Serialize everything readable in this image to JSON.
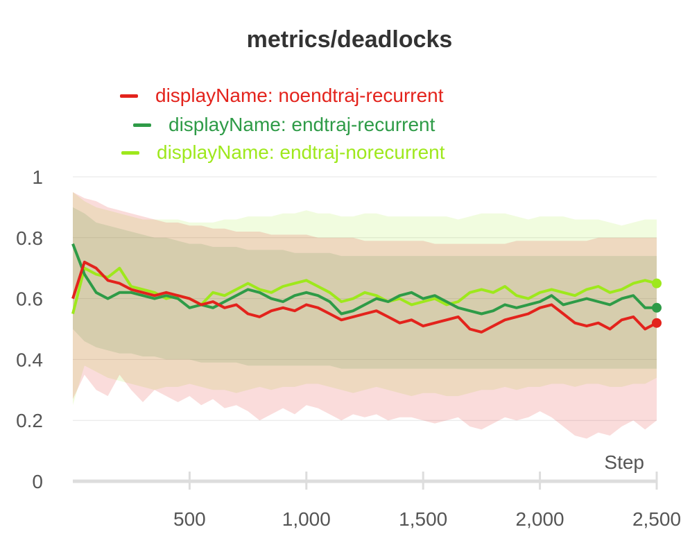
{
  "chart_data": {
    "type": "line",
    "title": "metrics/deadlocks",
    "xlabel": "Step",
    "ylabel": "",
    "xlim": [
      0,
      2500
    ],
    "ylim": [
      0,
      1
    ],
    "x_ticks": [
      500,
      1000,
      1500,
      2000,
      2500
    ],
    "x_tick_labels": [
      "500",
      "1,000",
      "1,500",
      "2,000",
      "2,500"
    ],
    "y_ticks": [
      0,
      0.2,
      0.4,
      0.6,
      0.8,
      1
    ],
    "y_tick_labels": [
      "0",
      "0.2",
      "0.4",
      "0.6",
      "0.8",
      "1"
    ],
    "grid": true,
    "legend_position": "top",
    "x": [
      0,
      50,
      100,
      150,
      200,
      250,
      300,
      350,
      400,
      450,
      500,
      550,
      600,
      650,
      700,
      750,
      800,
      850,
      900,
      950,
      1000,
      1050,
      1100,
      1150,
      1200,
      1250,
      1300,
      1350,
      1400,
      1450,
      1500,
      1550,
      1600,
      1650,
      1700,
      1750,
      1800,
      1850,
      1900,
      1950,
      2000,
      2050,
      2100,
      2150,
      2200,
      2250,
      2300,
      2350,
      2400,
      2450,
      2500
    ],
    "series": [
      {
        "name": "displayName: noendtraj-recurrent",
        "color": "#e3231c",
        "values": [
          0.6,
          0.72,
          0.7,
          0.66,
          0.65,
          0.63,
          0.62,
          0.61,
          0.62,
          0.61,
          0.6,
          0.58,
          0.59,
          0.57,
          0.58,
          0.55,
          0.54,
          0.56,
          0.57,
          0.56,
          0.58,
          0.57,
          0.55,
          0.53,
          0.54,
          0.55,
          0.56,
          0.54,
          0.52,
          0.53,
          0.51,
          0.52,
          0.53,
          0.54,
          0.5,
          0.49,
          0.51,
          0.53,
          0.54,
          0.55,
          0.57,
          0.58,
          0.55,
          0.52,
          0.51,
          0.52,
          0.5,
          0.53,
          0.54,
          0.5,
          0.52
        ],
        "band_upper": [
          0.95,
          0.93,
          0.92,
          0.9,
          0.89,
          0.88,
          0.87,
          0.86,
          0.85,
          0.85,
          0.84,
          0.84,
          0.83,
          0.83,
          0.82,
          0.82,
          0.82,
          0.81,
          0.81,
          0.81,
          0.81,
          0.8,
          0.8,
          0.8,
          0.8,
          0.79,
          0.79,
          0.79,
          0.79,
          0.79,
          0.79,
          0.78,
          0.78,
          0.78,
          0.78,
          0.78,
          0.78,
          0.78,
          0.79,
          0.79,
          0.79,
          0.79,
          0.79,
          0.79,
          0.79,
          0.8,
          0.8,
          0.8,
          0.8,
          0.8,
          0.8
        ],
        "band_lower": [
          0.27,
          0.35,
          0.3,
          0.28,
          0.35,
          0.3,
          0.26,
          0.3,
          0.28,
          0.26,
          0.28,
          0.25,
          0.27,
          0.24,
          0.25,
          0.23,
          0.2,
          0.22,
          0.24,
          0.22,
          0.25,
          0.24,
          0.22,
          0.2,
          0.22,
          0.21,
          0.22,
          0.2,
          0.21,
          0.21,
          0.2,
          0.19,
          0.2,
          0.21,
          0.18,
          0.17,
          0.19,
          0.21,
          0.2,
          0.21,
          0.23,
          0.21,
          0.18,
          0.15,
          0.14,
          0.16,
          0.15,
          0.18,
          0.2,
          0.17,
          0.2
        ]
      },
      {
        "name": "displayName: endtraj-recurrent",
        "color": "#2e9b47",
        "values": [
          0.78,
          0.68,
          0.62,
          0.6,
          0.62,
          0.62,
          0.61,
          0.6,
          0.61,
          0.6,
          0.57,
          0.58,
          0.57,
          0.59,
          0.61,
          0.63,
          0.62,
          0.6,
          0.59,
          0.61,
          0.62,
          0.61,
          0.59,
          0.55,
          0.56,
          0.58,
          0.6,
          0.59,
          0.61,
          0.62,
          0.6,
          0.61,
          0.59,
          0.57,
          0.56,
          0.55,
          0.56,
          0.58,
          0.57,
          0.58,
          0.59,
          0.61,
          0.58,
          0.59,
          0.6,
          0.59,
          0.58,
          0.6,
          0.61,
          0.57,
          0.57
        ],
        "band_upper": [
          0.9,
          0.88,
          0.85,
          0.84,
          0.83,
          0.82,
          0.81,
          0.8,
          0.8,
          0.79,
          0.78,
          0.78,
          0.77,
          0.77,
          0.77,
          0.76,
          0.76,
          0.76,
          0.76,
          0.75,
          0.75,
          0.75,
          0.75,
          0.74,
          0.74,
          0.74,
          0.74,
          0.74,
          0.74,
          0.74,
          0.74,
          0.74,
          0.74,
          0.74,
          0.74,
          0.74,
          0.74,
          0.74,
          0.74,
          0.74,
          0.74,
          0.74,
          0.74,
          0.74,
          0.74,
          0.74,
          0.74,
          0.74,
          0.74,
          0.74,
          0.74
        ],
        "band_lower": [
          0.5,
          0.46,
          0.44,
          0.43,
          0.42,
          0.42,
          0.41,
          0.41,
          0.4,
          0.4,
          0.4,
          0.39,
          0.39,
          0.39,
          0.39,
          0.38,
          0.38,
          0.38,
          0.38,
          0.38,
          0.38,
          0.38,
          0.38,
          0.37,
          0.37,
          0.37,
          0.37,
          0.37,
          0.37,
          0.37,
          0.37,
          0.37,
          0.37,
          0.37,
          0.37,
          0.37,
          0.37,
          0.37,
          0.37,
          0.37,
          0.37,
          0.37,
          0.37,
          0.37,
          0.37,
          0.37,
          0.37,
          0.37,
          0.37,
          0.37,
          0.37
        ]
      },
      {
        "name": "displayName: endtraj-norecurrent",
        "color": "#9ee81c",
        "values": [
          0.55,
          0.7,
          0.68,
          0.67,
          0.7,
          0.64,
          0.63,
          0.62,
          0.6,
          0.61,
          0.6,
          0.58,
          0.62,
          0.61,
          0.63,
          0.65,
          0.63,
          0.62,
          0.64,
          0.65,
          0.66,
          0.64,
          0.62,
          0.59,
          0.6,
          0.62,
          0.61,
          0.59,
          0.6,
          0.58,
          0.59,
          0.6,
          0.58,
          0.59,
          0.62,
          0.63,
          0.62,
          0.64,
          0.61,
          0.6,
          0.62,
          0.63,
          0.62,
          0.61,
          0.63,
          0.64,
          0.62,
          0.63,
          0.65,
          0.66,
          0.65
        ],
        "band_upper": [
          0.95,
          0.92,
          0.9,
          0.89,
          0.88,
          0.87,
          0.86,
          0.86,
          0.86,
          0.86,
          0.85,
          0.85,
          0.85,
          0.86,
          0.86,
          0.87,
          0.87,
          0.87,
          0.88,
          0.88,
          0.89,
          0.88,
          0.88,
          0.87,
          0.87,
          0.88,
          0.88,
          0.87,
          0.87,
          0.87,
          0.87,
          0.87,
          0.87,
          0.86,
          0.87,
          0.88,
          0.88,
          0.88,
          0.87,
          0.86,
          0.87,
          0.87,
          0.87,
          0.86,
          0.86,
          0.86,
          0.85,
          0.84,
          0.85,
          0.86,
          0.86
        ],
        "band_lower": [
          0.25,
          0.38,
          0.36,
          0.34,
          0.33,
          0.32,
          0.31,
          0.3,
          0.31,
          0.31,
          0.32,
          0.31,
          0.3,
          0.3,
          0.29,
          0.3,
          0.31,
          0.3,
          0.31,
          0.31,
          0.32,
          0.32,
          0.31,
          0.3,
          0.29,
          0.3,
          0.31,
          0.3,
          0.29,
          0.28,
          0.29,
          0.29,
          0.28,
          0.28,
          0.29,
          0.3,
          0.3,
          0.31,
          0.3,
          0.31,
          0.31,
          0.32,
          0.32,
          0.31,
          0.32,
          0.32,
          0.31,
          0.31,
          0.32,
          0.32,
          0.34
        ]
      }
    ]
  }
}
